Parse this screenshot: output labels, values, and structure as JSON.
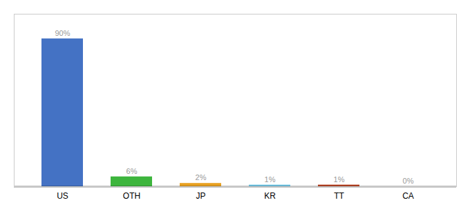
{
  "chart_data": {
    "type": "bar",
    "categories": [
      "US",
      "OTH",
      "JP",
      "KR",
      "TT",
      "CA"
    ],
    "values": [
      90,
      6,
      2,
      1,
      1,
      0
    ],
    "value_labels": [
      "90%",
      "6%",
      "2%",
      "1%",
      "1%",
      "0%"
    ],
    "colors": [
      "#4472C4",
      "#3DB53D",
      "#E8A020",
      "#70C8E8",
      "#B84020",
      "#A0A0A0"
    ],
    "ylim": [
      0,
      105
    ],
    "data_labels": true,
    "tick_labels": "x",
    "grid": false
  }
}
